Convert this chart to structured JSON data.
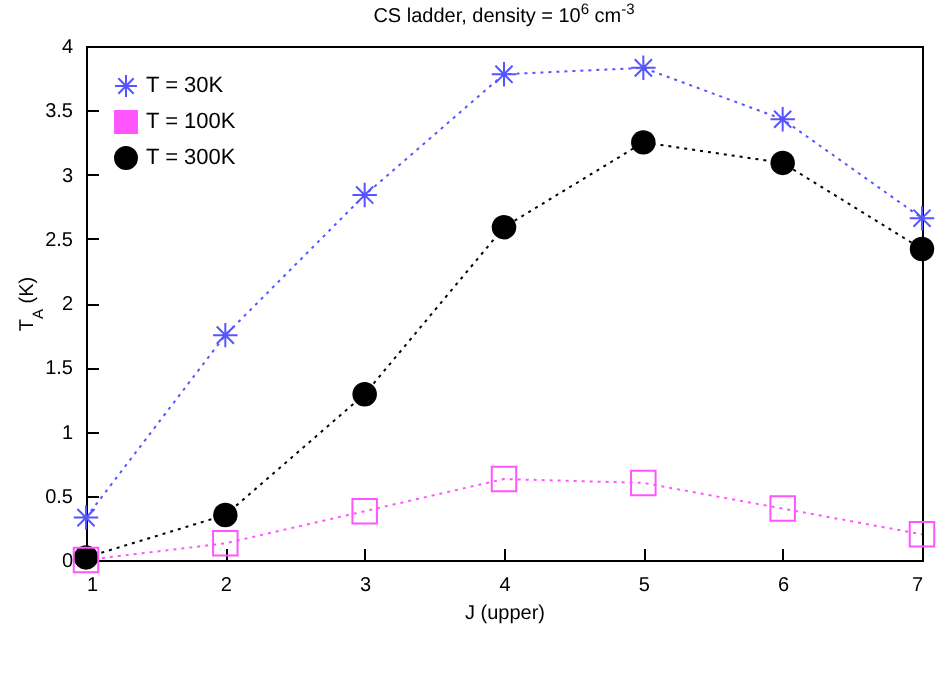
{
  "chart_data": {
    "type": "line",
    "title": "CS ladder, density = 10$^{6}$ cm$^{-3}$",
    "xlabel": "J (upper)",
    "ylabel": "T$_{A}$ (K)",
    "x": [
      1,
      2,
      3,
      4,
      5,
      6,
      7
    ],
    "xlim": [
      1,
      7
    ],
    "xticks": [
      1,
      2,
      3,
      4,
      5,
      6,
      7
    ],
    "ylim": [
      0,
      4
    ],
    "yticks": [
      0,
      0.5,
      1,
      1.5,
      2,
      2.5,
      3,
      3.5,
      4
    ],
    "grid": false,
    "legend": "top left",
    "line_style": "dotted",
    "series": [
      {
        "name": "T = 30K",
        "color": "#5555ff",
        "marker": "cross",
        "values": [
          0.33,
          1.75,
          2.84,
          3.78,
          3.83,
          3.43,
          2.66
        ]
      },
      {
        "name": "T = 100K",
        "color": "#ff55ff",
        "marker": "square",
        "values": [
          0.0,
          0.13,
          0.38,
          0.63,
          0.6,
          0.4,
          0.2
        ]
      },
      {
        "name": "T = 300K",
        "color": "#000000",
        "marker": "circle",
        "values": [
          0.02,
          0.35,
          1.29,
          2.59,
          3.25,
          3.09,
          2.42
        ]
      }
    ]
  }
}
